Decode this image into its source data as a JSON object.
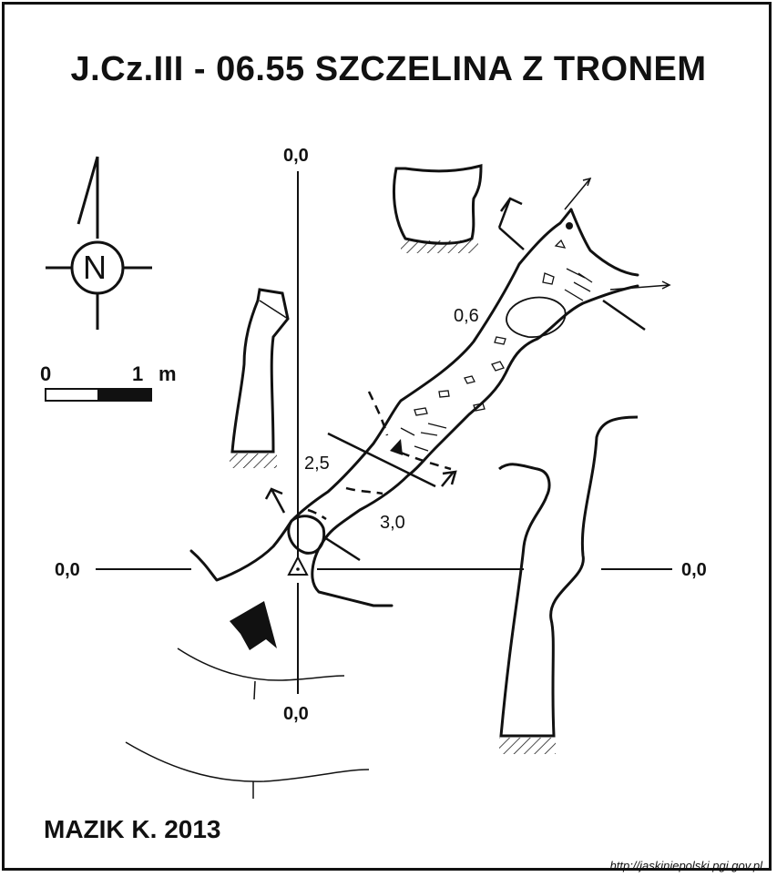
{
  "title": "J.Cz.III - 06.55  SZCZELINA Z TRONEM",
  "author": "MAZIK K. 2013",
  "url": "http://jaskiniepolski.pgi.gov.pl",
  "north_label": "N",
  "scale": {
    "start": "0",
    "end": "1",
    "unit": "m"
  },
  "coordinates": {
    "top": "0,0",
    "bottom": "0,0",
    "left": "0,0",
    "right": "0,0"
  },
  "depths": {
    "upper": "0,6",
    "middle": "2,5",
    "lower": "3,0"
  },
  "colors": {
    "ink": "#111111",
    "background": "#ffffff"
  },
  "icons": {
    "entrance": "triangle-dot-icon",
    "direction": "entrance-arrow-icon",
    "north": "north-arrow-icon"
  }
}
